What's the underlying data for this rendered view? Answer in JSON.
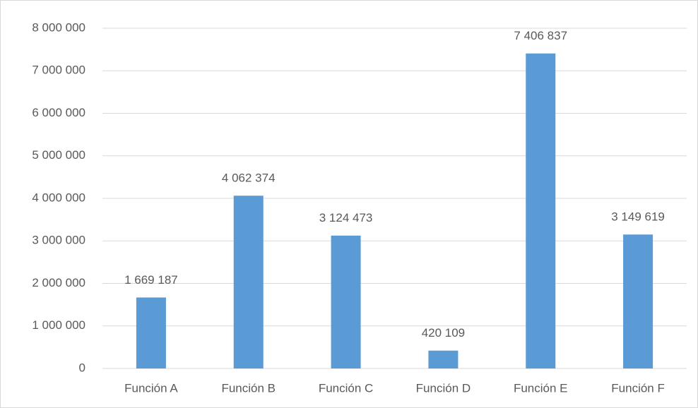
{
  "chart_data": {
    "type": "bar",
    "categories": [
      "Función A",
      "Función B",
      "Función C",
      "Función D",
      "Función E",
      "Función F"
    ],
    "values": [
      1669187,
      4062374,
      3124473,
      420109,
      7406837,
      3149619
    ],
    "value_labels": [
      "1 669 187",
      "4 062 374",
      "3 124 473",
      "420 109",
      "7 406 837",
      "3 149 619"
    ],
    "color": "#5b9bd5",
    "ylim": [
      0,
      8000000
    ],
    "yticks": [
      0,
      {
        "value": 1000000,
        "label": "1 000 000"
      },
      {
        "value": 2000000,
        "label": "2 000 000"
      },
      {
        "value": 3000000,
        "label": "3 000 000"
      },
      {
        "value": 4000000,
        "label": "4 000 000"
      },
      {
        "value": 5000000,
        "label": "5 000 000"
      },
      {
        "value": 6000000,
        "label": "6 000 000"
      },
      {
        "value": 7000000,
        "label": "7 000 000"
      },
      {
        "value": 8000000,
        "label": "8 000 000"
      }
    ],
    "grid": true
  }
}
